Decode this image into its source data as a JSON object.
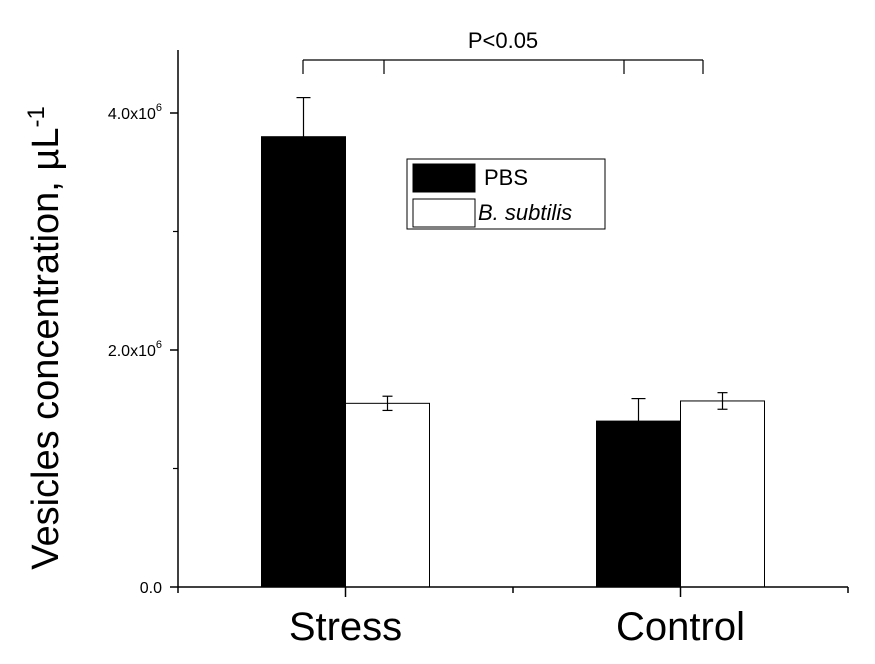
{
  "chart_data": {
    "type": "bar",
    "title": "",
    "xlabel": "",
    "ylabel": "Vesicles concentration, µL",
    "ylabel_superscript": "-1",
    "categories": [
      "Stress",
      "Control"
    ],
    "series": [
      {
        "name": "PBS",
        "color": "#000000",
        "values": [
          3800000,
          1400000
        ],
        "errors": [
          330000,
          190000
        ]
      },
      {
        "name": "B. subtilis",
        "color": "#ffffff",
        "values": [
          1550000,
          1570000
        ],
        "errors": [
          60000,
          70000
        ]
      }
    ],
    "ylim": [
      0,
      4500000
    ],
    "yticks": [
      {
        "value": 0,
        "mantissa": "0.0",
        "exponent": ""
      },
      {
        "value": 2000000,
        "mantissa": "2.0x10",
        "exponent": "6"
      },
      {
        "value": 4000000,
        "mantissa": "4.0x10",
        "exponent": "6"
      }
    ],
    "yminor_ticks": [
      1000000,
      3000000
    ],
    "legend": {
      "position": "top-center",
      "entries": [
        "PBS",
        "B. subtilis"
      ]
    },
    "annotation": {
      "text": "P<0.05"
    }
  }
}
